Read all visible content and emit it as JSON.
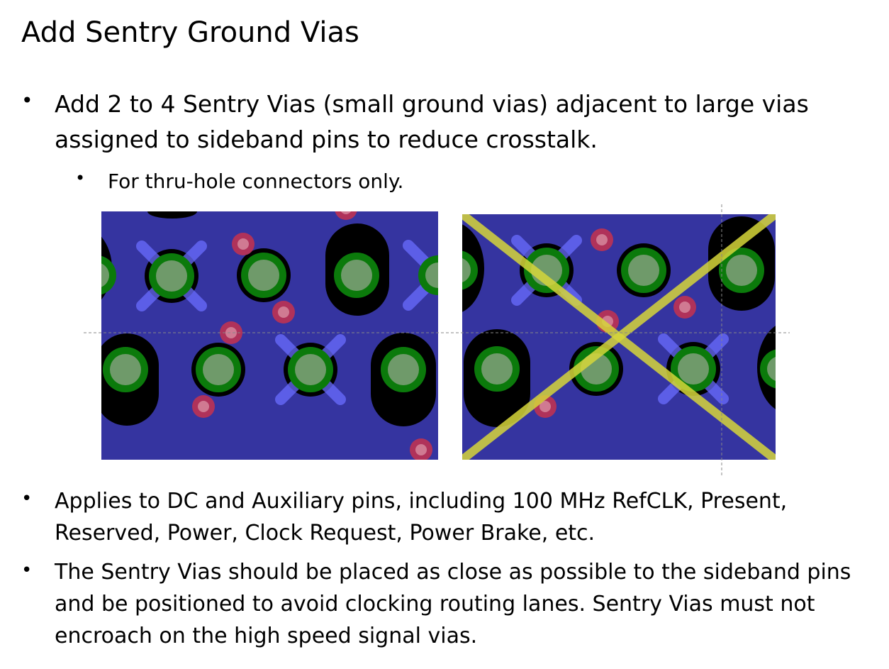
{
  "slide": {
    "title": "Add Sentry Ground Vias"
  },
  "bullets": [
    {
      "level": 1,
      "text": "Add 2 to 4 Sentry Vias (small ground vias) adjacent to large vias assigned to sideband pins to reduce crosstalk."
    },
    {
      "level": 2,
      "text": "For thru-hole connectors only."
    },
    {
      "level": 1,
      "text": "Applies to DC and Auxiliary pins, including 100 MHz RefCLK, Present, Reserved, Power, Clock Request, Power Brake, etc."
    },
    {
      "level": 1,
      "text": "The Sentry Vias should be placed as close as possible to the sideband pins and be positioned to avoid clocking routing lanes. Sentry Vias must not encroach on the high speed signal vias."
    }
  ],
  "bullet_glyph": "•",
  "figure": {
    "board_color": "#3534a0",
    "antipad_color": "#000000",
    "pad_ring_color": "#0b7a0b",
    "pad_center_color": "#6f9a6a",
    "sentry_via_color": "#b0325a",
    "sentry_marker_color": "#6a6cff",
    "reject_cross_color": "#d6d63a",
    "guide_line_color": "#888888",
    "panels": [
      {
        "name": "recommended-layout",
        "rejected": false
      },
      {
        "name": "not-recommended-layout",
        "rejected": true
      }
    ]
  }
}
